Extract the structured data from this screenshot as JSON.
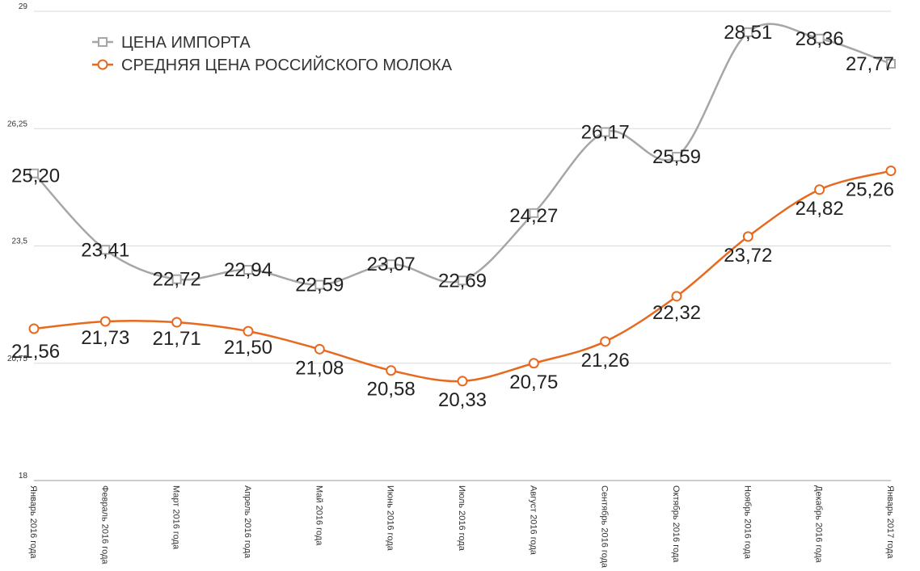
{
  "chart_data": {
    "type": "line",
    "categories": [
      "Январь 2016 года",
      "Февраль 2016 года",
      "Март 2016 года",
      "Апрель 2016 года",
      "Май 2016 года",
      "Июнь 2016 года",
      "Июль 2016 года",
      "Август 2016 года",
      "Сентябрь 2016 года",
      "Октябрь 2016 года",
      "Ноябрь 2016 года",
      "Декабрь 2016 года",
      "Январь 2017 года"
    ],
    "series": [
      {
        "name": "ЦЕНА ИМПОРТА",
        "color": "#a6a6a6",
        "marker": "square",
        "values": [
          25.2,
          23.41,
          22.72,
          22.94,
          22.59,
          23.07,
          22.69,
          24.27,
          26.17,
          25.59,
          28.51,
          28.36,
          27.77
        ],
        "labels": [
          "25,20",
          "23,41",
          "22,72",
          "22,94",
          "22,59",
          "23,07",
          "22,69",
          "24,27",
          "26,17",
          "25,59",
          "28,51",
          "28,36",
          "27,77"
        ]
      },
      {
        "name": "СРЕДНЯЯ ЦЕНА РОССИЙСКОГО МОЛОКА",
        "color": "#e8691e",
        "marker": "circle",
        "values": [
          21.56,
          21.73,
          21.71,
          21.5,
          21.08,
          20.58,
          20.33,
          20.75,
          21.26,
          22.32,
          23.72,
          24.82,
          25.26
        ],
        "labels": [
          "21,56",
          "21,73",
          "21,71",
          "21,50",
          "21,08",
          "20,58",
          "20,33",
          "20,75",
          "21,26",
          "22,32",
          "23,72",
          "24,82",
          "25,26"
        ]
      }
    ],
    "ylim": [
      18,
      29
    ],
    "yticks": [
      18,
      20.75,
      23.5,
      26.25,
      29
    ],
    "ytick_labels": [
      "18",
      "20,75",
      "23,5",
      "26,25",
      "29"
    ],
    "grid": true,
    "legend_position": "top-left",
    "xlabel": "",
    "ylabel": "",
    "title": ""
  }
}
